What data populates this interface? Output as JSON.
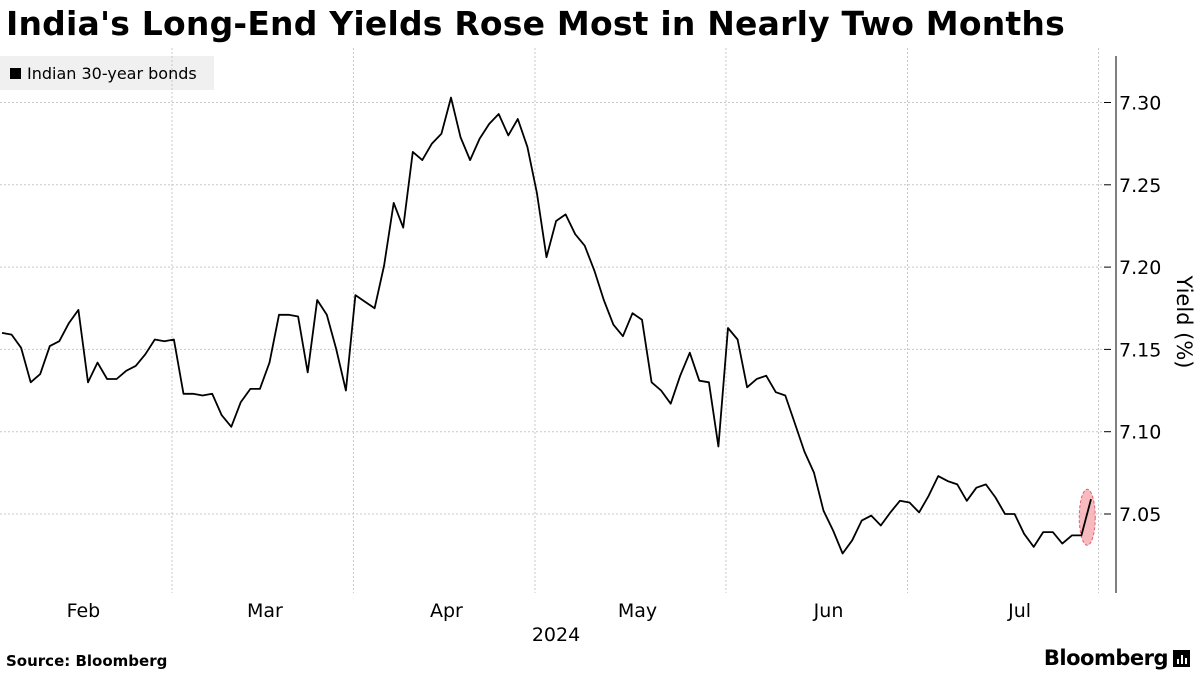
{
  "chart_data": {
    "type": "line",
    "title": "India's Long-End Yields Rose Most in Nearly Two Months",
    "series": [
      {
        "name": "Indian 30-year bonds",
        "color": "#000000",
        "values": [
          7.16,
          7.159,
          7.151,
          7.13,
          7.135,
          7.152,
          7.155,
          7.166,
          7.174,
          7.13,
          7.142,
          7.132,
          7.132,
          7.137,
          7.14,
          7.147,
          7.156,
          7.155,
          7.156,
          7.123,
          7.123,
          7.122,
          7.123,
          7.11,
          7.103,
          7.118,
          7.126,
          7.126,
          7.142,
          7.171,
          7.171,
          7.17,
          7.136,
          7.18,
          7.171,
          7.15,
          7.125,
          7.183,
          7.179,
          7.175,
          7.201,
          7.239,
          7.224,
          7.27,
          7.265,
          7.275,
          7.281,
          7.303,
          7.279,
          7.265,
          7.278,
          7.287,
          7.293,
          7.28,
          7.29,
          7.273,
          7.245,
          7.206,
          7.228,
          7.232,
          7.22,
          7.213,
          7.198,
          7.18,
          7.165,
          7.158,
          7.172,
          7.168,
          7.13,
          7.125,
          7.117,
          7.134,
          7.148,
          7.131,
          7.13,
          7.091,
          7.163,
          7.156,
          7.127,
          7.132,
          7.134,
          7.124,
          7.122,
          7.105,
          7.088,
          7.075,
          7.052,
          7.04,
          7.026,
          7.034,
          7.046,
          7.049,
          7.043,
          7.051,
          7.058,
          7.057,
          7.051,
          7.061,
          7.073,
          7.07,
          7.068,
          7.058,
          7.066,
          7.068,
          7.06,
          7.05,
          7.05,
          7.038,
          7.03,
          7.039,
          7.039,
          7.032,
          7.037,
          7.037,
          7.059
        ]
      }
    ],
    "highlight": {
      "index": 114,
      "color": "#f4a3aa"
    },
    "yaxis": {
      "label": "Yield (%)",
      "lim": [
        7.0,
        7.33
      ],
      "ticks": [
        "7.05",
        "7.10",
        "7.15",
        "7.20",
        "7.25",
        "7.30"
      ],
      "position": "right"
    },
    "xaxis": {
      "month_labels": [
        {
          "label": "Feb",
          "at": 8
        },
        {
          "label": "Mar",
          "at": 27
        },
        {
          "label": "Apr",
          "at": 46
        },
        {
          "label": "May",
          "at": 66
        },
        {
          "label": "Jun",
          "at": 86
        },
        {
          "label": "Jul",
          "at": 106
        }
      ],
      "month_boundaries": [
        18,
        37,
        56,
        76,
        95,
        115
      ],
      "year_label": "2024"
    },
    "grid": true,
    "legend": "top-left"
  },
  "legend_label": "Indian 30-year bonds",
  "footer": {
    "source": "Source: Bloomberg",
    "brand": "Bloomberg"
  }
}
